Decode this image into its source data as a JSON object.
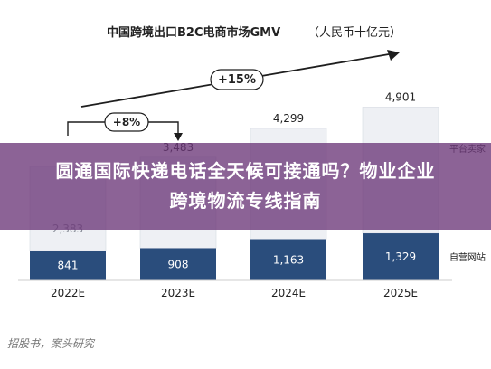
{
  "chart_data": {
    "type": "bar",
    "title": "中国跨境出口B2C电商市场GMV",
    "unit": "（人民币十亿元）",
    "categories": [
      "2022E",
      "2023E",
      "2024E",
      "2025E"
    ],
    "series": [
      {
        "name": "自营网站",
        "values": [
          841,
          908,
          1163,
          1329
        ],
        "color": "#2a4d7c"
      },
      {
        "name": "平台卖家",
        "values": [
          2383,
          2575,
          3136,
          3572
        ],
        "color": "#eef0f4"
      }
    ],
    "totals": [
      "",
      "3,483",
      "4,299",
      "4,901"
    ],
    "stack_labels": [
      "841",
      "908",
      "1,163",
      "1,329"
    ],
    "upper_labels": [
      "2,383",
      "",
      "",
      ""
    ],
    "ylim": [
      0,
      5500
    ],
    "annotations": {
      "growth_1": "+8%",
      "growth_2": "+15%"
    },
    "colors": {
      "accent": "#2a4d7c",
      "light": "#eef0f4",
      "arrow": "#1e1e1e"
    }
  },
  "overlay": {
    "text": "圆通国际快递电话全天候可接通吗？物业企业跨境物流专线指南"
  },
  "source": "招股书，案头研究"
}
